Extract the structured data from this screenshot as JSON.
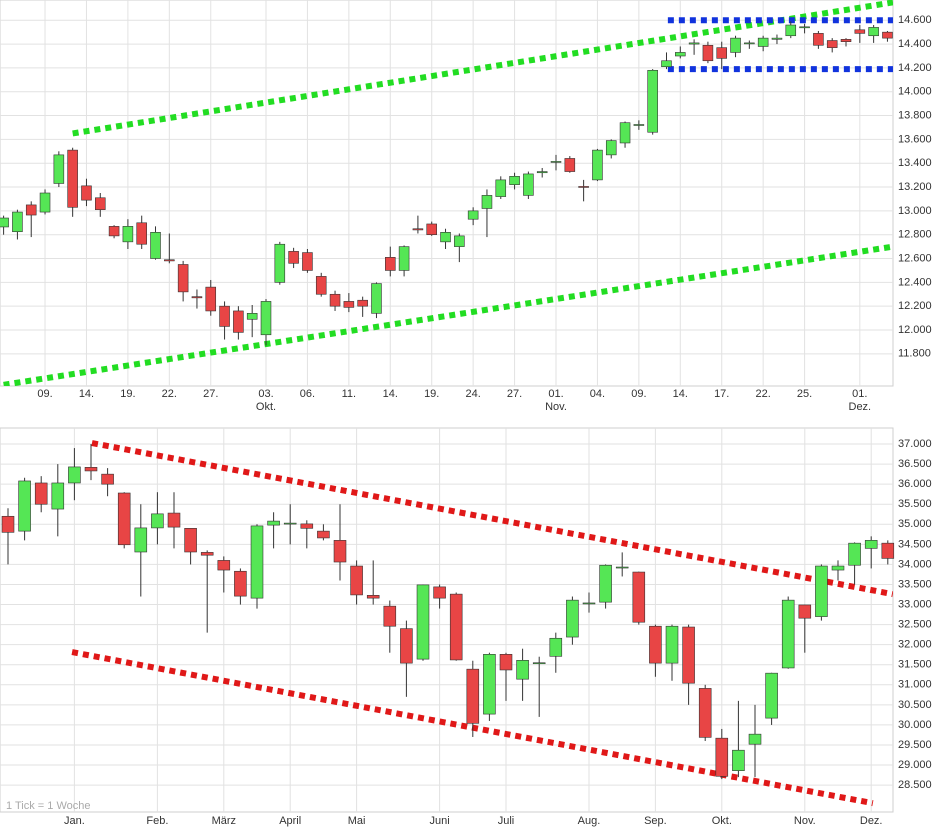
{
  "chart_data": [
    {
      "type": "candlestick",
      "categories": [
        null,
        null,
        null,
        "09.",
        null,
        null,
        "14.",
        null,
        null,
        "19.",
        null,
        null,
        "22.",
        null,
        null,
        "27.",
        null,
        null,
        null,
        "03.",
        null,
        null,
        "06.",
        null,
        null,
        "11.",
        null,
        null,
        "14.",
        null,
        null,
        "19.",
        null,
        null,
        "24.",
        null,
        null,
        "27.",
        null,
        null,
        "01.",
        null,
        null,
        "04.",
        null,
        null,
        "09.",
        null,
        null,
        "14.",
        null,
        null,
        "17.",
        null,
        null,
        "22.",
        null,
        null,
        "25.",
        null,
        null,
        null,
        "01.",
        null,
        null
      ],
      "months": [
        null,
        null,
        null,
        null,
        null,
        null,
        null,
        null,
        null,
        null,
        null,
        null,
        null,
        null,
        null,
        null,
        null,
        null,
        null,
        "Okt.",
        null,
        null,
        null,
        null,
        null,
        null,
        null,
        null,
        null,
        null,
        null,
        null,
        null,
        null,
        null,
        null,
        null,
        null,
        null,
        null,
        "Nov.",
        null,
        null,
        null,
        null,
        null,
        null,
        null,
        null,
        null,
        null,
        null,
        null,
        null,
        null,
        null,
        null,
        null,
        null,
        null,
        null,
        null,
        "Dez.",
        null,
        null
      ],
      "open": [
        12865,
        12825,
        13050,
        12990,
        13230,
        13510,
        13210,
        13110,
        12870,
        12740,
        12900,
        12600,
        12590,
        12550,
        12280,
        12360,
        12200,
        12160,
        12090,
        11960,
        12400,
        12660,
        12650,
        12450,
        12300,
        12240,
        12250,
        12140,
        12610,
        12500,
        12850,
        12890,
        12740,
        12700,
        12930,
        13020,
        13120,
        13220,
        13130,
        13320,
        13410,
        13440,
        13205,
        13260,
        13470,
        13570,
        13720,
        13660,
        14210,
        14300,
        14400,
        14390,
        14370,
        14330,
        14405,
        14380,
        14440,
        14470,
        14540,
        14490,
        14430,
        14440,
        14520,
        14470,
        14500
      ],
      "high": [
        12960,
        13010,
        13080,
        13180,
        13500,
        13530,
        13270,
        13150,
        12880,
        12930,
        12960,
        12870,
        12810,
        12580,
        12340,
        12420,
        12240,
        12200,
        12210,
        12260,
        12740,
        12690,
        12680,
        12480,
        12330,
        12310,
        12280,
        12400,
        12700,
        12710,
        12960,
        12910,
        12850,
        12810,
        13030,
        13180,
        13290,
        13320,
        13330,
        13360,
        13470,
        13460,
        13260,
        13520,
        13600,
        13750,
        13760,
        14190,
        14330,
        14380,
        14440,
        14420,
        14420,
        14470,
        14430,
        14470,
        14480,
        14590,
        14570,
        14510,
        14450,
        14450,
        14560,
        14560,
        14510
      ],
      "low": [
        12800,
        12760,
        12780,
        12970,
        13200,
        12950,
        13040,
        12950,
        12770,
        12680,
        12680,
        12590,
        12560,
        12240,
        12180,
        12120,
        11920,
        11920,
        11940,
        11870,
        12380,
        12520,
        12480,
        12280,
        12160,
        12150,
        12110,
        12100,
        12450,
        12450,
        12810,
        12790,
        12680,
        12570,
        12880,
        12780,
        13100,
        13180,
        13100,
        13280,
        13340,
        13320,
        13080,
        13250,
        13440,
        13530,
        13680,
        13640,
        14190,
        14280,
        14310,
        14240,
        14190,
        14290,
        14360,
        14340,
        14400,
        14450,
        14490,
        14360,
        14330,
        14380,
        14410,
        14410,
        14420
      ],
      "close": [
        12940,
        12990,
        12965,
        13150,
        13470,
        13030,
        13090,
        13010,
        12790,
        12870,
        12720,
        12820,
        12580,
        12320,
        12270,
        12160,
        12030,
        11980,
        12140,
        12240,
        12720,
        12560,
        12500,
        12300,
        12200,
        12190,
        12200,
        12390,
        12500,
        12700,
        12840,
        12800,
        12820,
        12790,
        13000,
        13130,
        13260,
        13290,
        13310,
        13330,
        13415,
        13330,
        13200,
        13510,
        13590,
        13740,
        13725,
        14180,
        14260,
        14330,
        14410,
        14260,
        14280,
        14450,
        14410,
        14450,
        14450,
        14560,
        14545,
        14390,
        14370,
        14420,
        14490,
        14540,
        14450
      ],
      "up_color": "#55e655",
      "down_color": "#e84545",
      "outline_color": "#333333",
      "ylim": [
        11530,
        14770
      ],
      "yticks": [
        {
          "value": 11800,
          "label": "11.800"
        },
        {
          "value": 12000,
          "label": "12.000"
        },
        {
          "value": 12200,
          "label": "12.200"
        },
        {
          "value": 12400,
          "label": "12.400"
        },
        {
          "value": 12600,
          "label": "12.600"
        },
        {
          "value": 12800,
          "label": "12.800"
        },
        {
          "value": 13000,
          "label": "13.000"
        },
        {
          "value": 13200,
          "label": "13.200"
        },
        {
          "value": 13400,
          "label": "13.400"
        },
        {
          "value": 13600,
          "label": "13.600"
        },
        {
          "value": 13800,
          "label": "13.800"
        },
        {
          "value": 14000,
          "label": "14.000"
        },
        {
          "value": 14200,
          "label": "14.200"
        },
        {
          "value": 14400,
          "label": "14.400"
        },
        {
          "value": 14600,
          "label": "14.600"
        }
      ],
      "grid": true,
      "trendlines": [
        {
          "color": "#22dd22",
          "from": [
            5,
            13650
          ],
          "to": [
            64.4,
            14750
          ]
        },
        {
          "color": "#22dd22",
          "from": [
            0,
            11540
          ],
          "to": [
            64.4,
            12700
          ]
        },
        {
          "color": "#1133dd",
          "from": [
            48.1,
            14600
          ],
          "to": [
            64.4,
            14600
          ]
        },
        {
          "color": "#1133dd",
          "from": [
            48.1,
            14190
          ],
          "to": [
            64.4,
            14190
          ]
        }
      ]
    },
    {
      "type": "candlestick",
      "categories": [
        null,
        null,
        null,
        null,
        "Jan.",
        null,
        null,
        null,
        null,
        "Feb.",
        null,
        null,
        null,
        "März",
        null,
        null,
        null,
        "April",
        null,
        null,
        null,
        "Mai",
        null,
        null,
        null,
        null,
        "Juni",
        null,
        null,
        null,
        "Juli",
        null,
        null,
        null,
        null,
        "Aug.",
        null,
        null,
        null,
        "Sep.",
        null,
        null,
        null,
        "Okt.",
        null,
        null,
        null,
        null,
        "Nov.",
        null,
        null,
        null,
        "Dez.",
        null
      ],
      "open": [
        35200,
        34830,
        36030,
        35380,
        36030,
        36420,
        36250,
        35780,
        34310,
        34910,
        35280,
        34900,
        34300,
        34100,
        33830,
        33160,
        34980,
        35020,
        35010,
        34830,
        34600,
        33960,
        33230,
        32960,
        32400,
        31640,
        33440,
        33260,
        31390,
        30270,
        31760,
        31140,
        31540,
        31710,
        32190,
        33020,
        33060,
        33920,
        33810,
        32460,
        31540,
        32440,
        30910,
        29670,
        28860,
        29520,
        30170,
        31420,
        32990,
        32700,
        33860,
        33980,
        34400,
        34530
      ],
      "high": [
        35400,
        36160,
        36200,
        36500,
        36900,
        37000,
        36400,
        35800,
        35500,
        35800,
        35800,
        34900,
        34350,
        34200,
        33900,
        35000,
        35300,
        35500,
        35100,
        35000,
        35500,
        34100,
        34100,
        33100,
        32600,
        33500,
        33500,
        33300,
        31600,
        31800,
        31800,
        31900,
        31700,
        32300,
        33200,
        33300,
        34000,
        34300,
        33820,
        32500,
        32500,
        32500,
        31000,
        29900,
        30600,
        30500,
        31300,
        33200,
        33000,
        34000,
        34100,
        34550,
        34700,
        34600
      ],
      "low": [
        34000,
        34600,
        35300,
        34700,
        35600,
        36100,
        35700,
        34400,
        33200,
        34500,
        34400,
        34000,
        32300,
        33300,
        33000,
        32900,
        34400,
        34500,
        34400,
        34600,
        33600,
        33000,
        33000,
        31800,
        30700,
        31600,
        32900,
        31600,
        29700,
        30100,
        30600,
        30600,
        30200,
        31300,
        32000,
        32800,
        32900,
        33700,
        32500,
        31200,
        31100,
        30500,
        29600,
        28650,
        28700,
        28700,
        30000,
        31400,
        31800,
        32600,
        33600,
        33500,
        33900,
        34000
      ],
      "close": [
        34800,
        36080,
        35500,
        36030,
        36430,
        36330,
        36000,
        34490,
        34910,
        35260,
        34930,
        34310,
        34230,
        33860,
        33210,
        34960,
        35080,
        35030,
        34900,
        34660,
        34060,
        33240,
        33160,
        32460,
        31540,
        33490,
        33160,
        31620,
        30040,
        31760,
        31370,
        31610,
        31550,
        32160,
        33110,
        33040,
        33980,
        33935,
        32560,
        31540,
        32460,
        31040,
        29690,
        28720,
        29370,
        29770,
        31290,
        33110,
        32660,
        33960,
        33960,
        34530,
        34600,
        34150
      ],
      "up_color": "#55e655",
      "down_color": "#e84545",
      "outline_color": "#333333",
      "ylim": [
        27830,
        37400
      ],
      "yticks": [
        {
          "value": 28500,
          "label": "28.500"
        },
        {
          "value": 29000,
          "label": "29.000"
        },
        {
          "value": 29500,
          "label": "29.500"
        },
        {
          "value": 30000,
          "label": "30.000"
        },
        {
          "value": 30500,
          "label": "30.500"
        },
        {
          "value": 31000,
          "label": "31.000"
        },
        {
          "value": 31500,
          "label": "31.500"
        },
        {
          "value": 32000,
          "label": "32.000"
        },
        {
          "value": 32500,
          "label": "32.500"
        },
        {
          "value": 33000,
          "label": "33.000"
        },
        {
          "value": 33500,
          "label": "33.500"
        },
        {
          "value": 34000,
          "label": "34.000"
        },
        {
          "value": 34500,
          "label": "34.500"
        },
        {
          "value": 35000,
          "label": "35.000"
        },
        {
          "value": 35500,
          "label": "35.500"
        },
        {
          "value": 36000,
          "label": "36.000"
        },
        {
          "value": 36500,
          "label": "36.500"
        },
        {
          "value": 37000,
          "label": "37.000"
        }
      ],
      "grid": true,
      "footnote": "1 Tick = 1 Woche",
      "trendlines": [
        {
          "color": "#e01818",
          "from": [
            5.06,
            37025
          ],
          "to": [
            53.3,
            33260
          ]
        },
        {
          "color": "#e01818",
          "from": [
            3.86,
            31815
          ],
          "to": [
            52.1,
            28050
          ]
        }
      ]
    }
  ]
}
